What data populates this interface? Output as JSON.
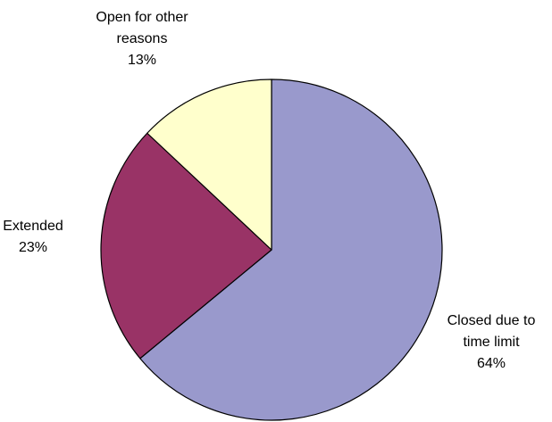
{
  "chart_data": {
    "type": "pie",
    "title": "",
    "slices": [
      {
        "key": "closed",
        "label_lines": [
          "Closed due to",
          "time limit"
        ],
        "percent_text": "64%",
        "value": 64,
        "color": "#9999CC"
      },
      {
        "key": "extended",
        "label_lines": [
          "Extended"
        ],
        "percent_text": "23%",
        "value": 23,
        "color": "#993366"
      },
      {
        "key": "other",
        "label_lines": [
          "Open for other",
          "reasons"
        ],
        "percent_text": "13%",
        "value": 13,
        "color": "#FFFFCC"
      }
    ],
    "start_angle_deg": 0,
    "direction": "clockwise",
    "outline_color": "#000000",
    "legend": "none",
    "data_labels": "outside"
  }
}
